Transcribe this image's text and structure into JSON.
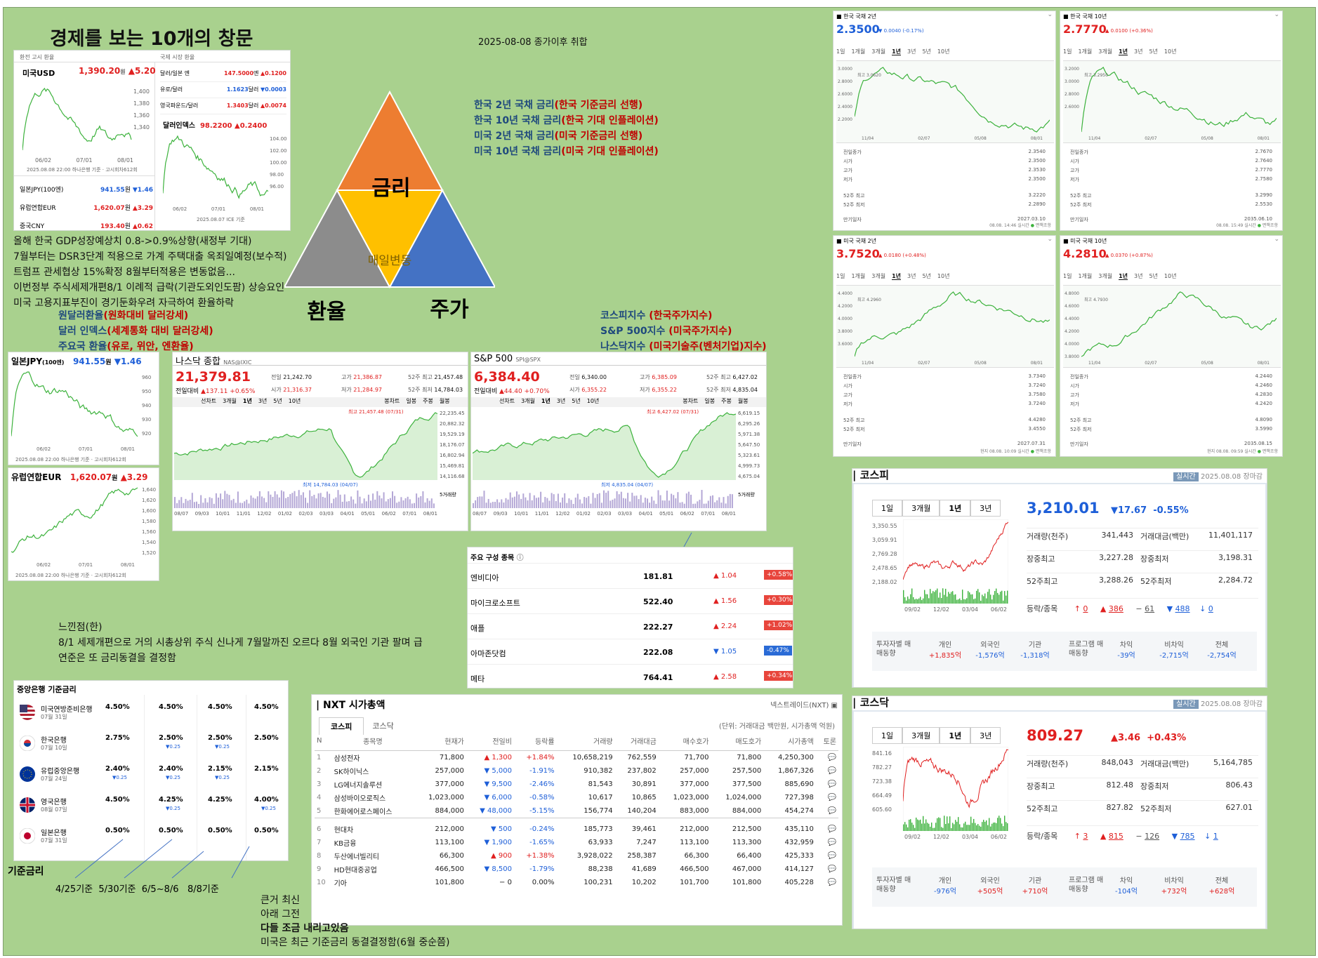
{
  "title": "경제를 보는 10개의 창문",
  "date": "2025-08-08 종가이후 취합",
  "triangle": {
    "top": "금리",
    "left": "환율",
    "right": "주가",
    "center": "매일변동"
  },
  "rate_notes": [
    {
      "a": "한국 2년 국채 금리",
      "b": "(한국 기준금리 선행)"
    },
    {
      "a": "한국 10년 국채 금리",
      "b": "(한국 기대 인플레이션)"
    },
    {
      "a": "미국 2년 국채 금리",
      "b": "(미국 기준금리 선행)"
    },
    {
      "a": "미국 10년 국채 금리",
      "b": "(미국 기대 인플레이션)"
    }
  ],
  "stock_notes": [
    {
      "a": "코스피지수 ",
      "b": "(한국주가지수)"
    },
    {
      "a": "S&P 500지수 ",
      "b": "(미국주가지수)"
    },
    {
      "a": "나스닥지수 ",
      "b": "(미국기술주(벤처기업)지수)"
    }
  ],
  "fx_notes": [
    {
      "a": "원달러환율",
      "b": "(원화대비 달러강세)"
    },
    {
      "a": "달러 인덱스",
      "b": "(세계통화 대비 달러강세)"
    },
    {
      "a": "주요국 환율",
      "b": "(유로, 위안, 엔환율)"
    }
  ],
  "left_notes": [
    "올해 한국 GDP성장예상치 0.8->0.9%상향(새정부 기대)",
    "7월부터는 DSR3단계 적용으로 가계 주택대출 옥죄일예정(보수적)",
    "트럼프 관세협상 15%확정 8월부터적용은 변동없음...",
    "이번정부 주식세제개편8/1 이례적 급락(기관도외인도팜) 상승요인",
    "미국 고용지표부진이 경기둔화우려 자극하여 환율하락"
  ],
  "feel": {
    "title": "느낀점(한)",
    "line1": "8/1 세제개편으로 거의 시총상위 주식 신나게 7월말까진 오르다 8월 외국인 기관 팔며 급",
    "line2": "연준은 또 금리동결을 결정함"
  },
  "fx_panel": {
    "left_head": "환전 고시 환율",
    "right_head": "국제 시장 환율",
    "usd": {
      "name": "미국USD",
      "val": "1,390.20",
      "unit": "원",
      "chg": "▲5.20"
    },
    "intl": [
      {
        "n": "달러/일본 엔",
        "v": "147.5000",
        "u": "엔",
        "c": "▲0.1200"
      },
      {
        "n": "유로/달러",
        "v": "1.1623",
        "u": "달러",
        "c": "▼0.0003"
      },
      {
        "n": "영국파운드/달러",
        "v": "1.3403",
        "u": "달러",
        "c": "▲0.0074"
      }
    ],
    "dxy": {
      "name": "달러인덱스",
      "val": "98.2200",
      "chg": "▲0.2400"
    },
    "list": [
      {
        "n": "일본JPY(100엔)",
        "v": "941.55",
        "u": "원",
        "c": "▼1.46"
      },
      {
        "n": "유럽연합EUR",
        "v": "1,620.07",
        "u": "원",
        "c": "▲3.29"
      },
      {
        "n": "중국CNY",
        "v": "193.40",
        "u": "원",
        "c": "▲0.62"
      }
    ],
    "src1": "2025.08.08 22:00 하나은행 기준 · 고시회차612회",
    "src2": "2025.08.07 ICE 기준",
    "usd_ticks": [
      "1,400",
      "1,380",
      "1,360",
      "1,340"
    ],
    "dx_ticks": [
      "104.00",
      "102.00",
      "100.00",
      "98.00",
      "96.00"
    ],
    "xt": [
      "06/02",
      "07/01",
      "08/01"
    ]
  },
  "jpy": {
    "name": "일본JPY",
    "unit2": "(100엔)",
    "val": "941.55",
    "u": "원",
    "chg": "▼1.46",
    "ticks": [
      "960",
      "950",
      "940",
      "930",
      "920"
    ],
    "src": "2025.08.08 22:00 하나은행 기준 · 고시회차612회"
  },
  "eur": {
    "name": "유럽연합EUR",
    "val": "1,620.07",
    "u": "원",
    "chg": "▲3.29",
    "ticks": [
      "1,640",
      "1,620",
      "1,600",
      "1,580",
      "1,560",
      "1,540",
      "1,520"
    ],
    "src": "2025.08.08 22:00 하나은행 기준 · 고시회차612회"
  },
  "xt3": [
    "06/02",
    "07/01",
    "08/01"
  ],
  "nasdaq": {
    "name": "나스닥 종합",
    "code": "NAS@IXIC",
    "val": "21,379.81",
    "chglbl": "전일대비",
    "chg": "▲137.11 +0.65%",
    "prev": "21,242.70",
    "open": "21,316.37",
    "high": "21,386.87",
    "low": "21,284.97",
    "w52h": "21,457.48",
    "w52l": "14,784.03",
    "hi": "최고 21,457.48 (07/31)",
    "lo": "최저 14,784.03 (04/07)",
    "ticks": [
      "22,235.45",
      "20,882.32",
      "19,529.19",
      "18,176.07",
      "16,802.94",
      "15,469.81",
      "14,116.68"
    ],
    "vol": "5거래량"
  },
  "sp500": {
    "name": "S&P 500",
    "code": "SPI@SPX",
    "val": "6,384.40",
    "chglbl": "전일대비",
    "chg": "▲44.40 +0.70%",
    "prev": "6,340.00",
    "open": "6,355.22",
    "high": "6,385.09",
    "low": "6,355.22",
    "w52h": "6,427.02",
    "w52l": "4,835.04",
    "hi": "최고 6,427.02 (07/31)",
    "lo": "최저 4,835.04 (04/07)",
    "ticks": [
      "6,619.15",
      "6,295.26",
      "5,971.38",
      "5,647.50",
      "5,323.61",
      "4,999.73",
      "4,675.04"
    ],
    "vol": "5거래량"
  },
  "idx_labels": {
    "prev": "전일",
    "open": "시가",
    "high": "고가",
    "low": "저가",
    "w52h": "52주 최고",
    "w52l": "52주 최저"
  },
  "idx_tabs": [
    "선차트",
    "3개월",
    "1년",
    "3년",
    "5년",
    "10년"
  ],
  "idx_tabs2": [
    "봉차트",
    "일봉",
    "주봉",
    "월봉"
  ],
  "idx_xt": [
    "08/07",
    "09/03",
    "10/01",
    "11/01",
    "12/02",
    "01/02",
    "02/03",
    "03/03",
    "04/01",
    "05/01",
    "06/02",
    "07/01",
    "08/01"
  ],
  "top_holdings": {
    "title": "주요 구성 종목",
    "rows": [
      {
        "n": "엔비디아",
        "v": "181.81",
        "c": "1.04",
        "p": "+0.58%",
        "up": true
      },
      {
        "n": "마이크로소프트",
        "v": "522.40",
        "c": "1.56",
        "p": "+0.30%",
        "up": true
      },
      {
        "n": "애플",
        "v": "222.27",
        "c": "2.24",
        "p": "+1.02%",
        "up": true
      },
      {
        "n": "아마존닷컴",
        "v": "222.08",
        "c": "1.05",
        "p": "-0.47%",
        "up": false
      },
      {
        "n": "메타",
        "v": "764.41",
        "c": "2.58",
        "p": "+0.34%",
        "up": true
      }
    ]
  },
  "bonds": [
    {
      "name": "한국 국채 2년",
      "val": "2.3500",
      "chg": "▼ 0.0040 (-0.17%)",
      "up": false,
      "rows": [
        [
          "전일종가",
          "2.3540"
        ],
        [
          "시가",
          "2.3500"
        ],
        [
          "고가",
          "2.3530"
        ],
        [
          "저가",
          "2.3500"
        ],
        [
          "52주 최고",
          "3.2220"
        ],
        [
          "52주 최저",
          "2.2890"
        ],
        [
          "만기일자",
          "2027.03.10"
        ]
      ],
      "foot": "08.08. 14:46 실시간",
      "yt": [
        "3.0000",
        "2.8000",
        "2.6000",
        "2.4000",
        "2.2000"
      ],
      "xt": [
        "11/04",
        "02/07",
        "05/08",
        "08/01"
      ],
      "tag": "최고 3.0620"
    },
    {
      "name": "한국 국채 10년",
      "val": "2.7770",
      "chg": "▲ 0.0100 (+0.36%)",
      "up": true,
      "rows": [
        [
          "전일종가",
          "2.7670"
        ],
        [
          "시가",
          "2.7640"
        ],
        [
          "고가",
          "2.7770"
        ],
        [
          "저가",
          "2.7580"
        ],
        [
          "52주 최고",
          "3.2990"
        ],
        [
          "52주 최저",
          "2.5530"
        ],
        [
          "만기일자",
          "2035.06.10"
        ]
      ],
      "foot": "08.08. 15:49 실시간",
      "yt": [
        "3.2000",
        "3.0000",
        "2.8000",
        "2.6000"
      ],
      "xt": [
        "11/04",
        "02/07",
        "05/08",
        "08/01"
      ],
      "tag": "최고 3.2950"
    },
    {
      "name": "미국 국채 2년",
      "val": "3.7520",
      "chg": "▲ 0.0180 (+0.48%)",
      "up": true,
      "rows": [
        [
          "전일종가",
          "3.7340"
        ],
        [
          "시가",
          "3.7240"
        ],
        [
          "고가",
          "3.7580"
        ],
        [
          "저가",
          "3.7240"
        ],
        [
          "52주 최고",
          "4.4280"
        ],
        [
          "52주 최저",
          "3.4550"
        ],
        [
          "만기일자",
          "2027.07.31"
        ]
      ],
      "foot": "현지 08.08. 10:09 실시간",
      "yt": [
        "4.4000",
        "4.2000",
        "4.0000",
        "3.8000",
        "3.6000"
      ],
      "xt": [
        "11/04",
        "02/07",
        "05/08",
        "08/01"
      ],
      "tag": "최고 4.2960"
    },
    {
      "name": "미국 국채 10년",
      "val": "4.2810",
      "chg": "▲ 0.0370 (+0.87%)",
      "up": true,
      "rows": [
        [
          "전일종가",
          "4.2440"
        ],
        [
          "시가",
          "4.2460"
        ],
        [
          "고가",
          "4.2830"
        ],
        [
          "저가",
          "4.2420"
        ],
        [
          "52주 최고",
          "4.8090"
        ],
        [
          "52주 최저",
          "3.5990"
        ],
        [
          "만기일자",
          "2035.08.15"
        ]
      ],
      "foot": "현지 08.08. 09:59 실시간",
      "yt": [
        "4.8000",
        "4.6000",
        "4.4000",
        "4.2000",
        "4.0000",
        "3.8000"
      ],
      "xt": [
        "11/04",
        "02/07",
        "05/08",
        "08/01"
      ],
      "tag": "최고 4.7930"
    }
  ],
  "bond_tabs": [
    "1일",
    "1개월",
    "3개월",
    "1년",
    "3년",
    "5년",
    "10년"
  ],
  "bond_foot2": "면책조항",
  "kospi": {
    "title": "코스피",
    "badge": "실시간",
    "date": "2025.08.08 장마감",
    "val": "3,210.01",
    "chg": "▼17.67",
    "pct": "-0.55%",
    "tabs": [
      "1일",
      "3개월",
      "1년",
      "3년"
    ],
    "stats": [
      [
        "거래량(천주)",
        "341,443",
        "거래대금(백만)",
        "11,401,117"
      ],
      [
        "장중최고",
        "3,227.28",
        "장중최저",
        "3,198.31"
      ],
      [
        "52주최고",
        "3,288.26",
        "52주최저",
        "2,284.72"
      ]
    ],
    "updown": {
      "lbl": "등락/종목",
      "a": "0",
      "b": "386",
      "c": "61",
      "d": "488",
      "e": "0"
    },
    "ticks": [
      "3,350.55",
      "3,059.91",
      "2,769.28",
      "2,478.65",
      "2,188.02"
    ],
    "xt": [
      "09/02",
      "12/02",
      "03/04",
      "06/02"
    ],
    "inv": {
      "lbl": "투자자별 매매동향",
      "h": [
        "개인",
        "외국인",
        "기관"
      ],
      "v": [
        "+1,835억",
        "-1,576억",
        "-1,318억"
      ],
      "plbl": "프로그램 매매동향",
      "ph": [
        "차익",
        "비차익",
        "전체"
      ],
      "pv": [
        "-39억",
        "-2,715억",
        "-2,754억"
      ]
    }
  },
  "kosdaq": {
    "title": "코스닥",
    "badge": "실시간",
    "date": "2025.08.08 장마감",
    "val": "809.27",
    "chg": "▲3.46",
    "pct": "+0.43%",
    "tabs": [
      "1일",
      "3개월",
      "1년",
      "3년"
    ],
    "stats": [
      [
        "거래량(천주)",
        "848,043",
        "거래대금(백만)",
        "5,164,785"
      ],
      [
        "장중최고",
        "812.48",
        "장중최저",
        "806.43"
      ],
      [
        "52주최고",
        "827.82",
        "52주최저",
        "627.01"
      ]
    ],
    "updown": {
      "lbl": "등락/종목",
      "a": "3",
      "b": "815",
      "c": "126",
      "d": "785",
      "e": "1"
    },
    "ticks": [
      "841.16",
      "782.27",
      "723.38",
      "664.49",
      "605.60"
    ],
    "xt": [
      "09/02",
      "12/02",
      "03/04",
      "06/02"
    ],
    "inv": {
      "lbl": "투자자별 매매동향",
      "h": [
        "개인",
        "외국인",
        "기관"
      ],
      "v": [
        "-976억",
        "+505억",
        "+710억"
      ],
      "plbl": "프로그램 매매동향",
      "ph": [
        "차익",
        "비차익",
        "전체"
      ],
      "pv": [
        "-104억",
        "+732억",
        "+628억"
      ]
    }
  },
  "central": {
    "title": "중앙은행 기준금리",
    "rows": [
      {
        "n": "미국연방준비은행",
        "d": "07월 31일",
        "v": [
          "4.50%",
          "4.50%",
          "4.50%",
          "4.50%"
        ],
        "s": [
          "",
          "",
          "",
          ""
        ],
        "flag": "us"
      },
      {
        "n": "한국은행",
        "d": "07월 10일",
        "v": [
          "2.75%",
          "2.50%",
          "2.50%",
          "2.50%"
        ],
        "s": [
          "",
          "▼0.25",
          "▼0.25",
          ""
        ],
        "flag": "kr"
      },
      {
        "n": "유럽중앙은행",
        "d": "07월 24일",
        "v": [
          "2.40%",
          "2.40%",
          "2.15%",
          "2.15%"
        ],
        "s": [
          "▼0.25",
          "▼0.25",
          "▼0.25",
          ""
        ],
        "flag": "eu"
      },
      {
        "n": "영국은행",
        "d": "08월 07일",
        "v": [
          "4.50%",
          "4.25%",
          "4.25%",
          "4.00%"
        ],
        "s": [
          "",
          "▼0.25",
          "",
          "▼0.25"
        ],
        "flag": "uk"
      },
      {
        "n": "일본은행",
        "d": "07월 31일",
        "v": [
          "0.50%",
          "0.50%",
          "0.50%",
          "0.50%"
        ],
        "s": [
          "",
          "",
          "",
          ""
        ],
        "flag": "jp"
      }
    ],
    "label": "기준금리",
    "dates": [
      "4/25기준",
      "5/30기준",
      "6/5~8/6",
      "8/8기준"
    ]
  },
  "bottom_notes": [
    "큰거 최신",
    "아래 그전",
    "다들 조금 내리고있음",
    "미국은 최근 기준금리 동결결정함(6월 중순쯤)"
  ],
  "nxt": {
    "title": "NXT 시가총액",
    "src": "넥스트레이드(NXT)",
    "tabs": [
      "코스피",
      "코스닥"
    ],
    "unit": "(단위: 거래대금 백만원, 시가총액 억원)",
    "head": [
      "N",
      "종목명",
      "현재가",
      "전일비",
      "등락률",
      "거래량",
      "거래대금",
      "매수호가",
      "매도호가",
      "시가총액",
      "토론"
    ],
    "rows": [
      [
        "1",
        "삼성전자",
        "71,800",
        "▲ 1,300",
        "+1.84%",
        "10,658,219",
        "762,559",
        "71,700",
        "71,800",
        "4,250,300"
      ],
      [
        "2",
        "SK하이닉스",
        "257,000",
        "▼ 5,000",
        "-1.91%",
        "910,382",
        "237,802",
        "257,000",
        "257,500",
        "1,867,326"
      ],
      [
        "3",
        "LG에너지솔루션",
        "377,000",
        "▼ 9,500",
        "-2.46%",
        "81,543",
        "30,891",
        "377,000",
        "377,500",
        "885,690"
      ],
      [
        "4",
        "삼성바이오로직스",
        "1,023,000",
        "▼ 6,000",
        "-0.58%",
        "10,617",
        "10,865",
        "1,023,000",
        "1,024,000",
        "727,398"
      ],
      [
        "5",
        "한화에어로스페이스",
        "884,000",
        "▼ 48,000",
        "-5.15%",
        "156,774",
        "140,204",
        "883,000",
        "884,000",
        "454,274"
      ],
      [
        "6",
        "현대차",
        "212,000",
        "▼ 500",
        "-0.24%",
        "185,773",
        "39,461",
        "212,000",
        "212,500",
        "435,110"
      ],
      [
        "7",
        "KB금융",
        "113,100",
        "▼ 1,900",
        "-1.65%",
        "63,933",
        "7,247",
        "113,100",
        "113,300",
        "432,959"
      ],
      [
        "8",
        "두산에너빌리티",
        "66,300",
        "▲ 900",
        "+1.38%",
        "3,928,022",
        "258,387",
        "66,300",
        "66,400",
        "425,333"
      ],
      [
        "9",
        "HD현대중공업",
        "466,500",
        "▼ 8,500",
        "-1.79%",
        "88,238",
        "41,689",
        "466,500",
        "467,000",
        "414,127"
      ],
      [
        "10",
        "기아",
        "101,800",
        "− 0",
        "0.00%",
        "100,231",
        "10,202",
        "101,700",
        "101,800",
        "405,228"
      ]
    ]
  },
  "colors": {
    "up": "#e02020",
    "down": "#1e5fd8",
    "green": "#3cb23c",
    "bg": "#a9d18e",
    "orange": "#ed7d31",
    "gold": "#ffc000",
    "blue": "#4472c4",
    "gray": "#8c8c8c"
  }
}
